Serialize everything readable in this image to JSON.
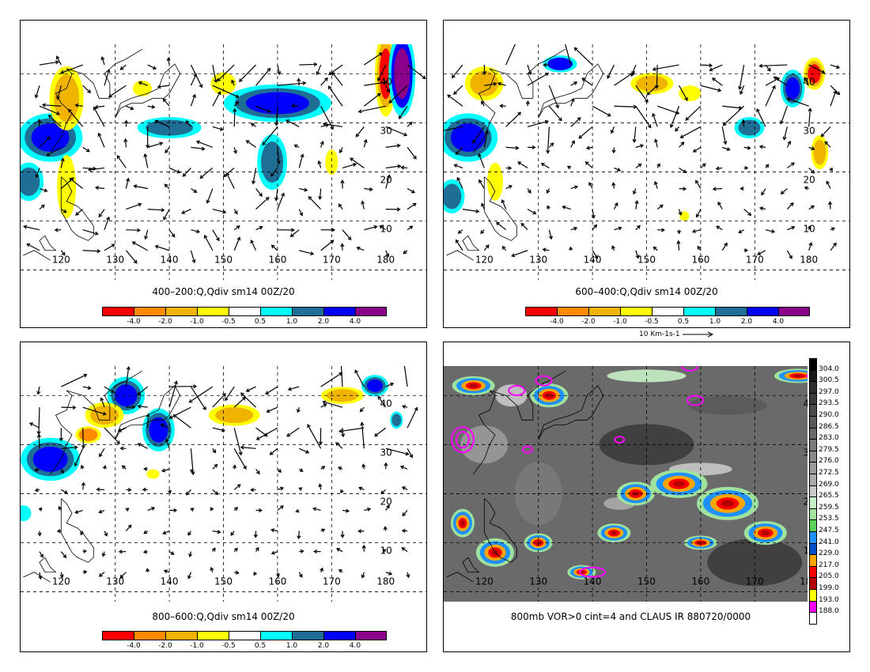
{
  "panels": [
    {
      "caption": "400–200:Q,Qdiv sm14 00Z/20"
    },
    {
      "caption": "600–400:Q,Qdiv sm14 00Z/20"
    },
    {
      "caption": "800–600:Q,Qdiv sm14 00Z/20"
    },
    {
      "caption": "800mb VOR>0 cint=4 and CLAUS IR 880720/0000"
    }
  ],
  "lon_labels": [
    "120",
    "130",
    "140",
    "150",
    "160",
    "170",
    "180"
  ],
  "lat_labels": [
    "10",
    "20",
    "30",
    "40"
  ],
  "qdiv_colorbar": {
    "colors": [
      "#ff0000",
      "#ff8c00",
      "#f0b400",
      "#ffff00",
      "#ffffff",
      "#00ffff",
      "#1e6e96",
      "#0000ff",
      "#8b008b"
    ],
    "labels": [
      "-4.0",
      "-2.0",
      "-1.0",
      "-0.5",
      "0.5",
      "1.0",
      "2.0",
      "4.0"
    ]
  },
  "vector_reference": "10 Km-1s-1",
  "ir_colorbar": {
    "labels": [
      "304.0",
      "300.5",
      "297.0",
      "293.5",
      "290.0",
      "286.5",
      "283.0",
      "279.5",
      "276.0",
      "272.5",
      "269.0",
      "265.5",
      "259.5",
      "253.5",
      "247.5",
      "241.0",
      "229.0",
      "217.0",
      "205.0",
      "199.0",
      "193.0",
      "188.0"
    ],
    "colors": [
      "#000000",
      "#1a1a1a",
      "#2e2e2e",
      "#3c3c3c",
      "#4b4b4b",
      "#5a5a5a",
      "#6a6a6a",
      "#7a7a7a",
      "#8a8a8a",
      "#9a9a9a",
      "#ababab",
      "#c8c8c8",
      "#c8f0c8",
      "#9ee29e",
      "#5ad25a",
      "#1e90ff",
      "#0050c8",
      "#ffa500",
      "#ff0000",
      "#b40000",
      "#ffff00",
      "#ff00ff",
      "#ffffff"
    ]
  },
  "colors": {
    "vorticity_contour": "#ff00ff"
  }
}
